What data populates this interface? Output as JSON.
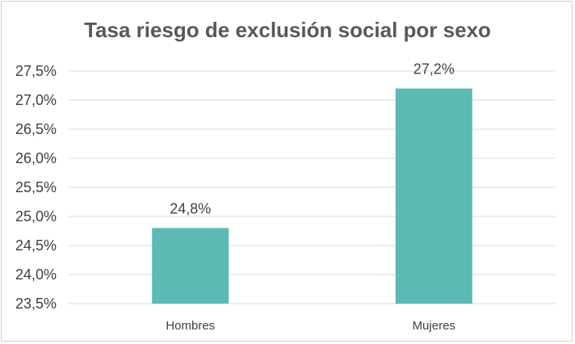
{
  "chart_data": {
    "type": "bar",
    "title": "Tasa riesgo de exclusión social por sexo",
    "categories": [
      "Hombres",
      "Mujeres"
    ],
    "values": [
      24.8,
      27.2
    ],
    "value_labels": [
      "24,8%",
      "27,2%"
    ],
    "ylim": [
      23.5,
      27.5
    ],
    "yticks": [
      23.5,
      24.0,
      24.5,
      25.0,
      25.5,
      26.0,
      26.5,
      27.0,
      27.5
    ],
    "ytick_labels": [
      "23,5%",
      "24,0%",
      "24,5%",
      "25,0%",
      "25,5%",
      "26,0%",
      "26,5%",
      "27,0%",
      "27,5%"
    ],
    "xlabel": "",
    "ylabel": "",
    "grid": true,
    "legend": "none",
    "bar_color": "#5cbab5",
    "grid_color": "#d9d9d9"
  }
}
